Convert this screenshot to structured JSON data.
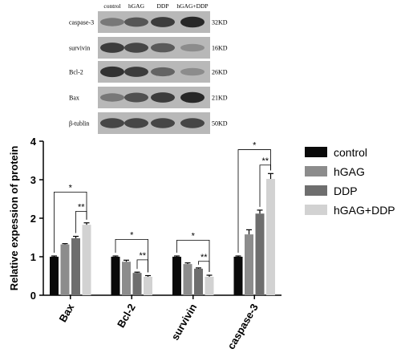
{
  "blot": {
    "lanes": [
      "control",
      "hGAG",
      "DDP",
      "hGAG+DDP"
    ],
    "bands": [
      {
        "name": "caspase-3",
        "size": "32KD",
        "intensity": [
          0.55,
          0.72,
          0.85,
          0.95
        ]
      },
      {
        "name": "survivin",
        "size": "16KD",
        "intensity": [
          0.85,
          0.8,
          0.7,
          0.45
        ]
      },
      {
        "name": "Bcl-2",
        "size": "26KD",
        "intensity": [
          0.9,
          0.85,
          0.65,
          0.45
        ]
      },
      {
        "name": "Bax",
        "size": "21KD",
        "intensity": [
          0.55,
          0.75,
          0.85,
          0.95
        ]
      },
      {
        "name": "β-tublin",
        "size": "50KD",
        "intensity": [
          0.8,
          0.8,
          0.8,
          0.8
        ]
      }
    ]
  },
  "chart_data": {
    "type": "bar",
    "ylabel": "Relative expession of protein",
    "ylim": [
      0,
      4
    ],
    "yticks": [
      "0",
      "1",
      "2",
      "3",
      "4"
    ],
    "categories": [
      "Bax",
      "Bcl-2",
      "survivin",
      "caspase-3"
    ],
    "legend_position": "right",
    "series": [
      {
        "name": "control",
        "color": "#0a0a0a",
        "values": [
          1.0,
          1.0,
          1.0,
          1.0
        ],
        "errors": [
          0.02,
          0.02,
          0.02,
          0.02
        ]
      },
      {
        "name": "hGAG",
        "color": "#8c8c8c",
        "values": [
          1.32,
          0.87,
          0.81,
          1.58
        ],
        "errors": [
          0.02,
          0.04,
          0.03,
          0.12
        ]
      },
      {
        "name": "DDP",
        "color": "#6e6e6e",
        "values": [
          1.48,
          0.58,
          0.69,
          2.12
        ],
        "errors": [
          0.05,
          0.02,
          0.02,
          0.09
        ]
      },
      {
        "name": "hGAG+DDP",
        "color": "#d2d2d2",
        "values": [
          1.83,
          0.48,
          0.48,
          3.02
        ],
        "errors": [
          0.05,
          0.03,
          0.04,
          0.14
        ]
      }
    ],
    "significance": [
      {
        "group": 0,
        "from": 0,
        "to": 3,
        "y": 2.68,
        "label": "*"
      },
      {
        "group": 0,
        "from": 2,
        "to": 3,
        "y": 2.18,
        "label": "**"
      },
      {
        "group": 1,
        "from": 0,
        "to": 3,
        "y": 1.45,
        "label": "*"
      },
      {
        "group": 1,
        "from": 2,
        "to": 3,
        "y": 0.92,
        "label": "**"
      },
      {
        "group": 2,
        "from": 0,
        "to": 3,
        "y": 1.43,
        "label": "*"
      },
      {
        "group": 2,
        "from": 2,
        "to": 3,
        "y": 0.88,
        "label": "**"
      },
      {
        "group": 3,
        "from": 0,
        "to": 3,
        "y": 3.78,
        "label": "*"
      },
      {
        "group": 3,
        "from": 2,
        "to": 3,
        "y": 3.38,
        "label": "**"
      }
    ]
  }
}
